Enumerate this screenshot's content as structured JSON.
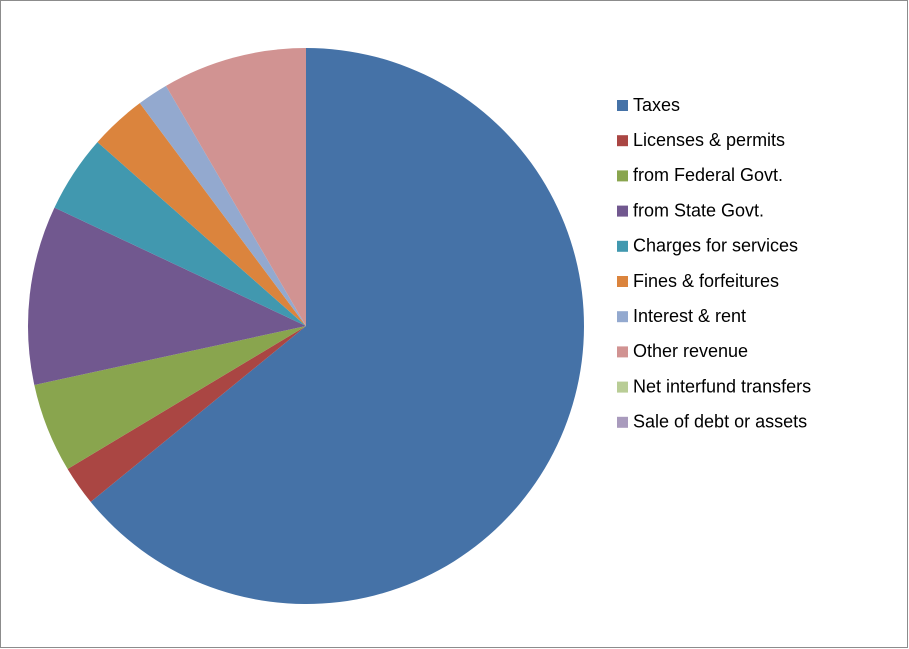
{
  "chart_data": {
    "type": "pie",
    "categories": [
      "Taxes",
      "Licenses & permits",
      "from Federal Govt.",
      "from State Govt.",
      "Charges for services",
      "Fines & forfeitures",
      "Interest & rent",
      "Other revenue",
      "Net interfund transfers",
      "Sale of debt or assets"
    ],
    "values": [
      64.1,
      2.3,
      5.2,
      10.4,
      4.5,
      3.3,
      1.8,
      8.4,
      0,
      0
    ],
    "colors": [
      "#4572a7",
      "#aa4643",
      "#89a54e",
      "#71588f",
      "#4198af",
      "#db843d",
      "#93a9cf",
      "#d19392",
      "#b9cd96",
      "#a99bbd"
    ],
    "legend": "right"
  }
}
